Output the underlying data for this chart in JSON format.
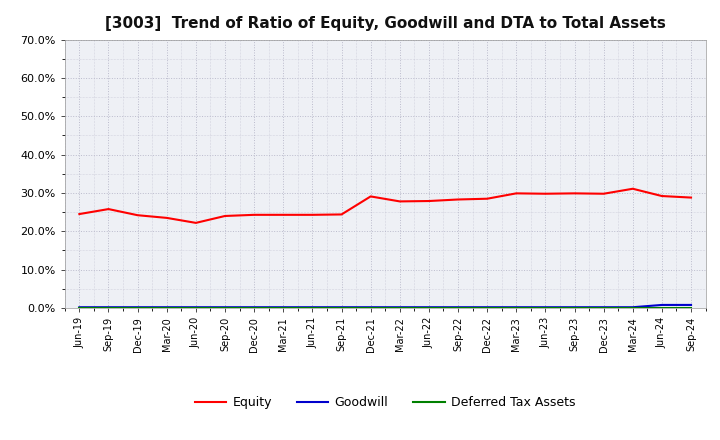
{
  "title": "[3003]  Trend of Ratio of Equity, Goodwill and DTA to Total Assets",
  "x_labels": [
    "Jun-19",
    "Sep-19",
    "Dec-19",
    "Mar-20",
    "Jun-20",
    "Sep-20",
    "Dec-20",
    "Mar-21",
    "Jun-21",
    "Sep-21",
    "Dec-21",
    "Mar-22",
    "Jun-22",
    "Sep-22",
    "Dec-22",
    "Mar-23",
    "Jun-23",
    "Sep-23",
    "Dec-23",
    "Mar-24",
    "Jun-24",
    "Sep-24"
  ],
  "equity": [
    0.245,
    0.258,
    0.242,
    0.235,
    0.222,
    0.24,
    0.243,
    0.243,
    0.243,
    0.244,
    0.291,
    0.278,
    0.279,
    0.283,
    0.285,
    0.299,
    0.298,
    0.299,
    0.298,
    0.311,
    0.292,
    0.288
  ],
  "goodwill": [
    0.002,
    0.002,
    0.002,
    0.002,
    0.002,
    0.002,
    0.002,
    0.002,
    0.002,
    0.002,
    0.002,
    0.002,
    0.002,
    0.002,
    0.002,
    0.002,
    0.002,
    0.002,
    0.002,
    0.002,
    0.008,
    0.008
  ],
  "dta": [
    0.001,
    0.001,
    0.001,
    0.001,
    0.001,
    0.001,
    0.001,
    0.001,
    0.001,
    0.001,
    0.001,
    0.001,
    0.001,
    0.001,
    0.001,
    0.001,
    0.001,
    0.001,
    0.001,
    0.001,
    0.001,
    0.001
  ],
  "equity_color": "#ff0000",
  "goodwill_color": "#0000cc",
  "dta_color": "#008000",
  "ylim": [
    0.0,
    0.7
  ],
  "yticks": [
    0.0,
    0.1,
    0.2,
    0.3,
    0.4,
    0.5,
    0.6,
    0.7
  ],
  "background_color": "#ffffff",
  "plot_bg_color": "#eef0f5",
  "grid_color": "#bbbbcc",
  "title_fontsize": 11,
  "legend_labels": [
    "Equity",
    "Goodwill",
    "Deferred Tax Assets"
  ]
}
